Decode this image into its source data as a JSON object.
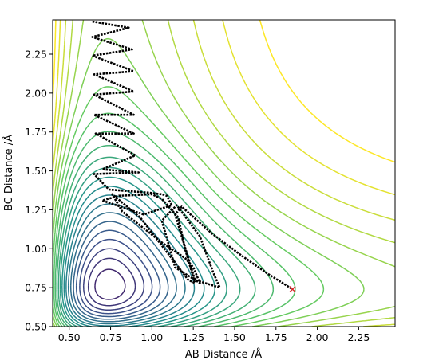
{
  "chart_data": {
    "type": "contour",
    "xlabel": "AB Distance /Å",
    "ylabel": "BC Distance /Å",
    "xlim": [
      0.4,
      2.47
    ],
    "ylim": [
      0.5,
      2.47
    ],
    "xticks": [
      "0.50",
      "0.75",
      "1.00",
      "1.25",
      "1.50",
      "1.75",
      "2.00",
      "2.25"
    ],
    "yticks": [
      "0.50",
      "0.75",
      "1.00",
      "1.25",
      "1.50",
      "1.75",
      "2.00",
      "2.25"
    ],
    "colormap": [
      "#440154",
      "#3b528b",
      "#21918c",
      "#5ec962",
      "#fde725"
    ],
    "contour_levels": 26,
    "trajectory_color": "#000000",
    "end_point": {
      "x": 1.85,
      "y": 0.74,
      "marker": "x",
      "color": "#d62728"
    },
    "trajectory_waypoints": [
      [
        0.64,
        2.46
      ],
      [
        0.86,
        2.42
      ],
      [
        0.64,
        2.36
      ],
      [
        0.88,
        2.28
      ],
      [
        0.64,
        2.24
      ],
      [
        0.89,
        2.14
      ],
      [
        0.65,
        2.12
      ],
      [
        0.89,
        2.01
      ],
      [
        0.65,
        1.99
      ],
      [
        0.89,
        1.86
      ],
      [
        0.65,
        1.86
      ],
      [
        0.89,
        1.74
      ],
      [
        0.66,
        1.74
      ],
      [
        0.9,
        1.6
      ],
      [
        0.7,
        1.51
      ],
      [
        0.92,
        1.49
      ],
      [
        0.65,
        1.48
      ],
      [
        0.74,
        1.38
      ],
      [
        0.98,
        1.36
      ],
      [
        1.06,
        1.35
      ],
      [
        1.09,
        1.34
      ],
      [
        1.12,
        1.28
      ],
      [
        0.95,
        1.22
      ],
      [
        0.7,
        1.31
      ],
      [
        0.8,
        1.34
      ],
      [
        1.0,
        1.35
      ],
      [
        1.06,
        1.32
      ],
      [
        1.16,
        1.2
      ],
      [
        1.2,
        1.0
      ],
      [
        1.26,
        0.78
      ],
      [
        1.22,
        0.8
      ],
      [
        0.93,
        1.2
      ],
      [
        0.76,
        1.35
      ],
      [
        0.82,
        1.24
      ],
      [
        1.06,
        1.04
      ],
      [
        1.2,
        0.94
      ],
      [
        1.25,
        0.88
      ],
      [
        1.29,
        0.78
      ],
      [
        1.14,
        0.88
      ],
      [
        1.06,
        1.18
      ],
      [
        1.15,
        1.28
      ],
      [
        1.29,
        1.08
      ],
      [
        1.37,
        0.85
      ],
      [
        1.41,
        0.75
      ],
      [
        1.26,
        0.8
      ],
      [
        1.14,
        1.22
      ],
      [
        1.18,
        1.27
      ],
      [
        1.36,
        1.1
      ],
      [
        1.55,
        0.95
      ],
      [
        1.7,
        0.84
      ],
      [
        1.85,
        0.74
      ]
    ]
  }
}
